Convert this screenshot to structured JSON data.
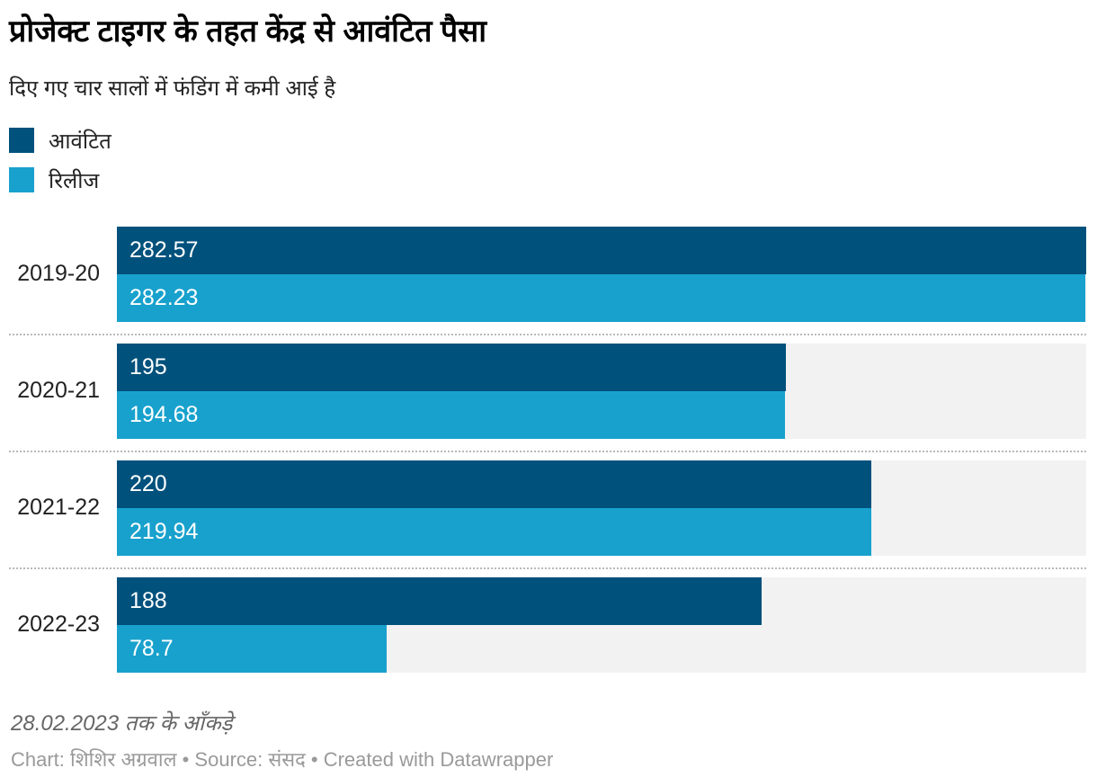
{
  "title": "प्रोजेक्ट टाइगर के तहत केंद्र से आवंटित पैसा",
  "subtitle": "दिए गए चार सालों में फंडिंग में कमी आई है",
  "legend": {
    "items": [
      {
        "key": "allocated",
        "label": "आवंटित",
        "color": "#00517c"
      },
      {
        "key": "released",
        "label": "रिलीज",
        "color": "#18a1cd"
      }
    ]
  },
  "chart_data": {
    "type": "bar",
    "orientation": "horizontal",
    "grouped": true,
    "categories": [
      "2019-20",
      "2020-21",
      "2021-22",
      "2022-23"
    ],
    "series": [
      {
        "name": "आवंटित",
        "key": "allocated",
        "color": "#00517c",
        "values": [
          282.57,
          195,
          220,
          188
        ],
        "labels": [
          "282.57",
          "195",
          "220",
          "188"
        ]
      },
      {
        "name": "रिलीज",
        "key": "released",
        "color": "#18a1cd",
        "values": [
          282.23,
          194.68,
          219.94,
          78.7
        ],
        "labels": [
          "282.23",
          "194.68",
          "219.94",
          "78.7"
        ]
      }
    ],
    "xlim": [
      0,
      282.57
    ],
    "value_labels_inside": true,
    "track_color": "#f2f2f2",
    "separator_style": "dotted",
    "legend_position": "top-left"
  },
  "footer": {
    "note": "28.02.2023 तक के आँकड़े",
    "byline": "Chart: शिशिर अग्रवाल • Source: संसद • Created with Datawrapper"
  }
}
